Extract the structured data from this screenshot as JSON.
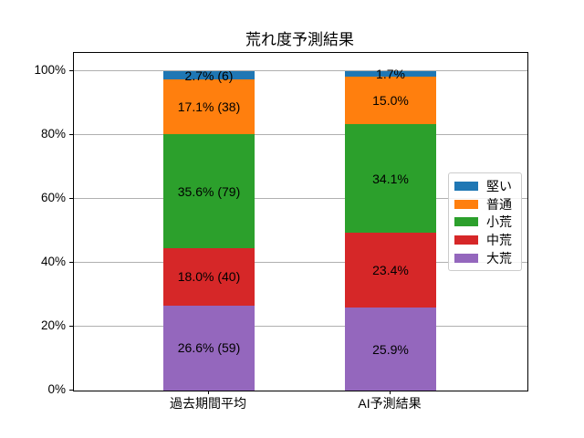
{
  "chart_data": {
    "type": "bar",
    "stacked": true,
    "title": "荒れ度予測結果",
    "categories": [
      "過去期間平均",
      "AI予測結果"
    ],
    "series": [
      {
        "name": "堅い",
        "color": "#1f77b4",
        "values": [
          2.7,
          1.7
        ],
        "labels": [
          "2.7% (6)",
          "1.7%"
        ],
        "past_count": 6
      },
      {
        "name": "普通",
        "color": "#ff7f0e",
        "values": [
          17.1,
          15.0
        ],
        "labels": [
          "17.1% (38)",
          "15.0%"
        ],
        "past_count": 38
      },
      {
        "name": "小荒",
        "color": "#2ca02c",
        "values": [
          35.6,
          34.1
        ],
        "labels": [
          "35.6% (79)",
          "34.1%"
        ],
        "past_count": 79
      },
      {
        "name": "中荒",
        "color": "#d62728",
        "values": [
          18.0,
          23.4
        ],
        "labels": [
          "18.0% (40)",
          "23.4%"
        ],
        "past_count": 40
      },
      {
        "name": "大荒",
        "color": "#9467bd",
        "values": [
          26.6,
          25.9
        ],
        "labels": [
          "26.6% (59)",
          "25.9%"
        ],
        "past_count": 59
      }
    ],
    "stack_order_bottom_to_top": [
      "大荒",
      "中荒",
      "小荒",
      "普通",
      "堅い"
    ],
    "y_ticks": [
      {
        "value": 0,
        "label": "0%"
      },
      {
        "value": 20,
        "label": "20%"
      },
      {
        "value": 40,
        "label": "40%"
      },
      {
        "value": 60,
        "label": "60%"
      },
      {
        "value": 80,
        "label": "80%"
      },
      {
        "value": 100,
        "label": "100%"
      }
    ],
    "ylim": [
      0,
      105.7
    ],
    "grid": true,
    "legend_position": "center right",
    "legend_entries": [
      "堅い",
      "普通",
      "小荒",
      "中荒",
      "大荒"
    ]
  },
  "colors": {
    "grid": "#b0b0b0",
    "spine": "#000000",
    "text": "#000000",
    "legend_border": "#cccccc"
  }
}
